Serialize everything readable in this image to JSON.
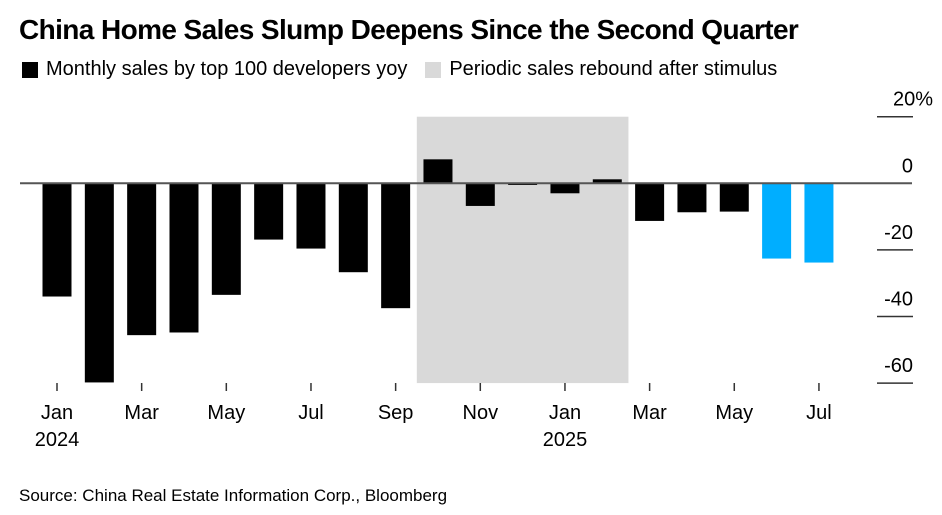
{
  "title": "China Home Sales Slump Deepens Since the Second Quarter",
  "legend": [
    {
      "label": "Monthly sales by top 100 developers yoy",
      "color": "#000000"
    },
    {
      "label": "Periodic sales rebound after stimulus",
      "color": "#d9d9d9"
    }
  ],
  "source": "Source: China Real Estate Information Corp., Bloomberg",
  "chart_data": {
    "type": "bar",
    "title": "China Home Sales Slump Deepens Since the Second Quarter",
    "xlabel": "",
    "ylabel": "",
    "ylim": [
      -60,
      20
    ],
    "y_ticks": [
      20,
      0,
      -20,
      -40,
      -60
    ],
    "y_tick_labels": [
      "20%",
      "0",
      "-20",
      "-40",
      "-60"
    ],
    "y_axis_position": "right",
    "grid": false,
    "legend_position": "top-left",
    "categories": [
      "Jan 2024",
      "Feb 2024",
      "Mar 2024",
      "Apr 2024",
      "May 2024",
      "Jun 2024",
      "Jul 2024",
      "Aug 2024",
      "Sep 2024",
      "Oct 2024",
      "Nov 2024",
      "Dec 2024",
      "Jan 2025",
      "Feb 2025",
      "Mar 2025",
      "Apr 2025",
      "May 2025",
      "Jun 2025",
      "Jul 2025"
    ],
    "x_tick_labels": [
      {
        "category": "Jan 2024",
        "label": "Jan",
        "year": "2024"
      },
      {
        "category": "Mar 2024",
        "label": "Mar"
      },
      {
        "category": "May 2024",
        "label": "May"
      },
      {
        "category": "Jul 2024",
        "label": "Jul"
      },
      {
        "category": "Sep 2024",
        "label": "Sep"
      },
      {
        "category": "Nov 2024",
        "label": "Nov"
      },
      {
        "category": "Jan 2025",
        "label": "Jan",
        "year": "2025"
      },
      {
        "category": "Mar 2025",
        "label": "Mar"
      },
      {
        "category": "May 2025",
        "label": "May"
      },
      {
        "category": "Jul 2025",
        "label": "Jul"
      }
    ],
    "series": [
      {
        "name": "Monthly sales by top 100 developers yoy",
        "values": [
          -34.0,
          -59.8,
          -45.6,
          -44.8,
          -33.5,
          -16.9,
          -19.6,
          -26.7,
          -37.5,
          7.2,
          -6.8,
          -0.5,
          -3.0,
          1.2,
          -11.3,
          -8.7,
          -8.5,
          -22.6,
          -23.8
        ],
        "colors": [
          "#000000",
          "#000000",
          "#000000",
          "#000000",
          "#000000",
          "#000000",
          "#000000",
          "#000000",
          "#000000",
          "#000000",
          "#000000",
          "#000000",
          "#000000",
          "#000000",
          "#000000",
          "#000000",
          "#000000",
          "#00aeff",
          "#00aeff"
        ]
      }
    ],
    "shaded_region": {
      "label": "Periodic sales rebound after stimulus",
      "from": "Oct 2024",
      "to": "Feb 2025",
      "color": "#d9d9d9"
    }
  }
}
